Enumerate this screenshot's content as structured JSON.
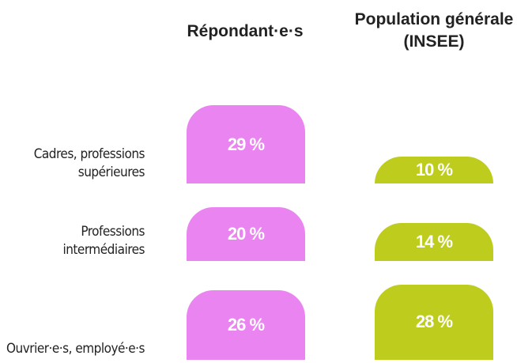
{
  "chart_data": {
    "type": "bar",
    "series_headers": [
      "Répondant·e·s",
      "Population générale (INSEE)"
    ],
    "categories": [
      "Cadres, professions supérieures",
      "Professions intermédiaires",
      "Ouvrier·e·s, employé·e·s"
    ],
    "series": [
      {
        "name": "Répondant·e·s",
        "color": "#ea84f0",
        "values": [
          29,
          20,
          26
        ],
        "value_labels": [
          "29 %",
          "20 %",
          "26 %"
        ]
      },
      {
        "name": "Population générale (INSEE)",
        "color": "#bdcc1d",
        "values": [
          10,
          14,
          28
        ],
        "value_labels": [
          "10 %",
          "14 %",
          "28 %"
        ]
      }
    ]
  }
}
